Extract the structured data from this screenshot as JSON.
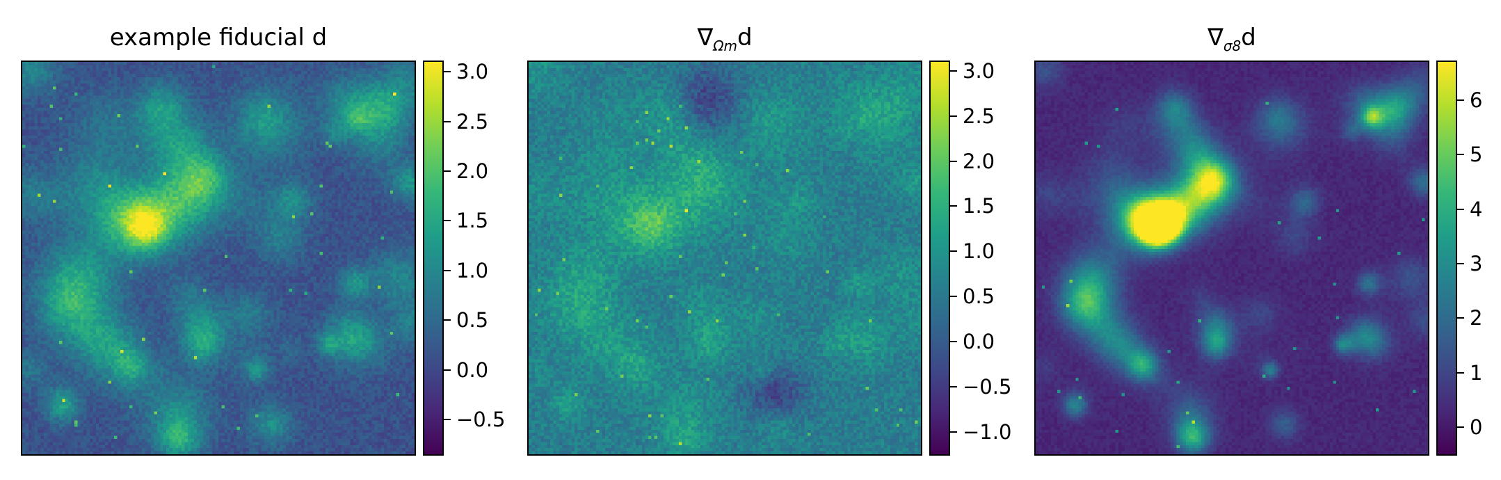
{
  "chart_data": [
    {
      "type": "heatmap",
      "title": "example fiducial d",
      "colormap": "viridis",
      "colorbar": {
        "min": -0.85,
        "max": 3.1,
        "ticks": [
          -0.5,
          0.0,
          0.5,
          1.0,
          1.5,
          2.0,
          2.5,
          3.0
        ],
        "tick_labels": [
          "−0.5",
          "0.0",
          "0.5",
          "1.0",
          "1.5",
          "2.0",
          "2.5",
          "3.0"
        ]
      },
      "grid_size": [
        128,
        128
      ],
      "background_level": 0.25
    },
    {
      "type": "heatmap",
      "title_prefix": "∇",
      "title_sub": "Ωm",
      "title_suffix": "d",
      "colormap": "viridis",
      "colorbar": {
        "min": -1.25,
        "max": 3.1,
        "ticks": [
          -1.0,
          -0.5,
          0.0,
          0.5,
          1.0,
          1.5,
          2.0,
          2.5,
          3.0
        ],
        "tick_labels": [
          "−1.0",
          "−0.5",
          "0.0",
          "0.5",
          "1.0",
          "1.5",
          "2.0",
          "2.5",
          "3.0"
        ]
      },
      "grid_size": [
        128,
        128
      ],
      "background_level": 0.42
    },
    {
      "type": "heatmap",
      "title_prefix": "∇",
      "title_sub": "σ8",
      "title_suffix": "d",
      "colormap": "viridis",
      "colorbar": {
        "min": -0.5,
        "max": 6.7,
        "ticks": [
          0,
          1,
          2,
          3,
          4,
          5,
          6
        ],
        "tick_labels": [
          "0",
          "1",
          "2",
          "3",
          "4",
          "5",
          "6"
        ]
      },
      "grid_size": [
        128,
        128
      ],
      "background_level": 0.08
    }
  ]
}
